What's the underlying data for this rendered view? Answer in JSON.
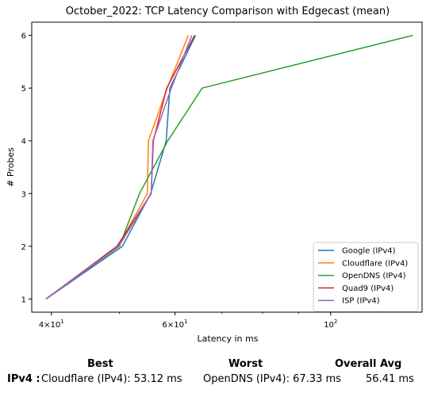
{
  "chart_data": {
    "type": "line",
    "title": "October_2022: TCP Latency Comparison with Edgecast (mean)",
    "xlabel": "Latency in ms",
    "ylabel": "# Probes",
    "xscale": "log",
    "xlim": [
      37.5,
      135
    ],
    "ylim": [
      0.75,
      6.25
    ],
    "xticks": [
      {
        "value": 40,
        "label_base": "4×10",
        "label_exp": "1"
      },
      {
        "value": 60,
        "label_base": "6×10",
        "label_exp": "1"
      },
      {
        "value": 100,
        "label_base": "10",
        "label_exp": "2"
      }
    ],
    "yticks": [
      1,
      2,
      3,
      4,
      5,
      6
    ],
    "grid": false,
    "legend_position": "lower-right",
    "series": [
      {
        "name": "Google (IPv4)",
        "color": "#1f77b4",
        "points": [
          [
            39.3,
            1
          ],
          [
            50.5,
            2
          ],
          [
            55.4,
            3
          ],
          [
            58.3,
            4
          ],
          [
            59.0,
            5
          ],
          [
            64.2,
            6
          ]
        ]
      },
      {
        "name": "Cloudflare (IPv4)",
        "color": "#ff7f0e",
        "points": [
          [
            39.3,
            1
          ],
          [
            49.8,
            2
          ],
          [
            54.8,
            3
          ],
          [
            55.0,
            4
          ],
          [
            58.5,
            5
          ],
          [
            62.7,
            6
          ]
        ]
      },
      {
        "name": "OpenDNS (IPv4)",
        "color": "#2ca02c",
        "points": [
          [
            39.3,
            1
          ],
          [
            50.0,
            2
          ],
          [
            53.4,
            3
          ],
          [
            58.6,
            4
          ],
          [
            65.6,
            5
          ],
          [
            131.0,
            6
          ]
        ]
      },
      {
        "name": "Quad9 (IPv4)",
        "color": "#d62728",
        "points": [
          [
            39.3,
            1
          ],
          [
            49.6,
            2
          ],
          [
            55.5,
            3
          ],
          [
            55.9,
            4
          ],
          [
            58.4,
            5
          ],
          [
            64.0,
            6
          ]
        ]
      },
      {
        "name": "ISP (IPv4)",
        "color": "#9467bd",
        "points": [
          [
            39.3,
            1
          ],
          [
            49.9,
            2
          ],
          [
            55.5,
            3
          ],
          [
            55.8,
            4
          ],
          [
            59.3,
            5
          ],
          [
            63.4,
            6
          ]
        ]
      }
    ]
  },
  "summary": {
    "best_header": "Best",
    "worst_header": "Worst",
    "avg_header": "Overall Avg",
    "row_label": "IPv4 :",
    "best_value": "Cloudflare (IPv4): 53.12 ms",
    "worst_value": "OpenDNS (IPv4): 67.33 ms",
    "avg_value": "56.41 ms"
  }
}
